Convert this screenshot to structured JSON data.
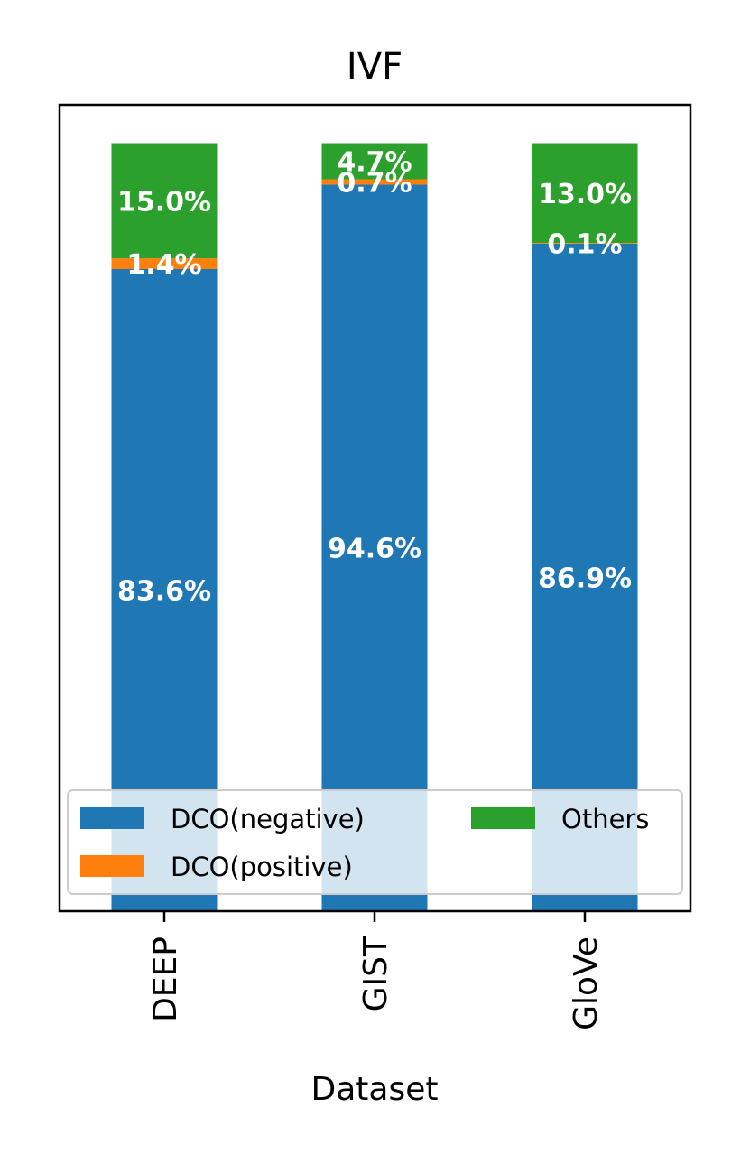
{
  "chart_data": {
    "type": "bar",
    "stacked": true,
    "title": "IVF",
    "xlabel": "Dataset",
    "ylabel": "",
    "ylim": [
      0,
      105
    ],
    "categories": [
      "DEEP",
      "GIST",
      "GloVe"
    ],
    "series": [
      {
        "name": "DCO(negative)",
        "color": "#1f77b4",
        "values": [
          83.6,
          94.6,
          86.9
        ],
        "labels": [
          "83.6%",
          "94.6%",
          "86.9%"
        ]
      },
      {
        "name": "DCO(positive)",
        "color": "#ff7f0e",
        "values": [
          1.4,
          0.7,
          0.1
        ],
        "labels": [
          "1.4%",
          "0.7%",
          "0.1%"
        ]
      },
      {
        "name": "Others",
        "color": "#2ca02c",
        "values": [
          15.0,
          4.7,
          13.0
        ],
        "labels": [
          "15.0%",
          "4.7%",
          "13.0%"
        ]
      }
    ],
    "legend": {
      "position": "lower-center",
      "columns": 2
    },
    "grid": false
  }
}
